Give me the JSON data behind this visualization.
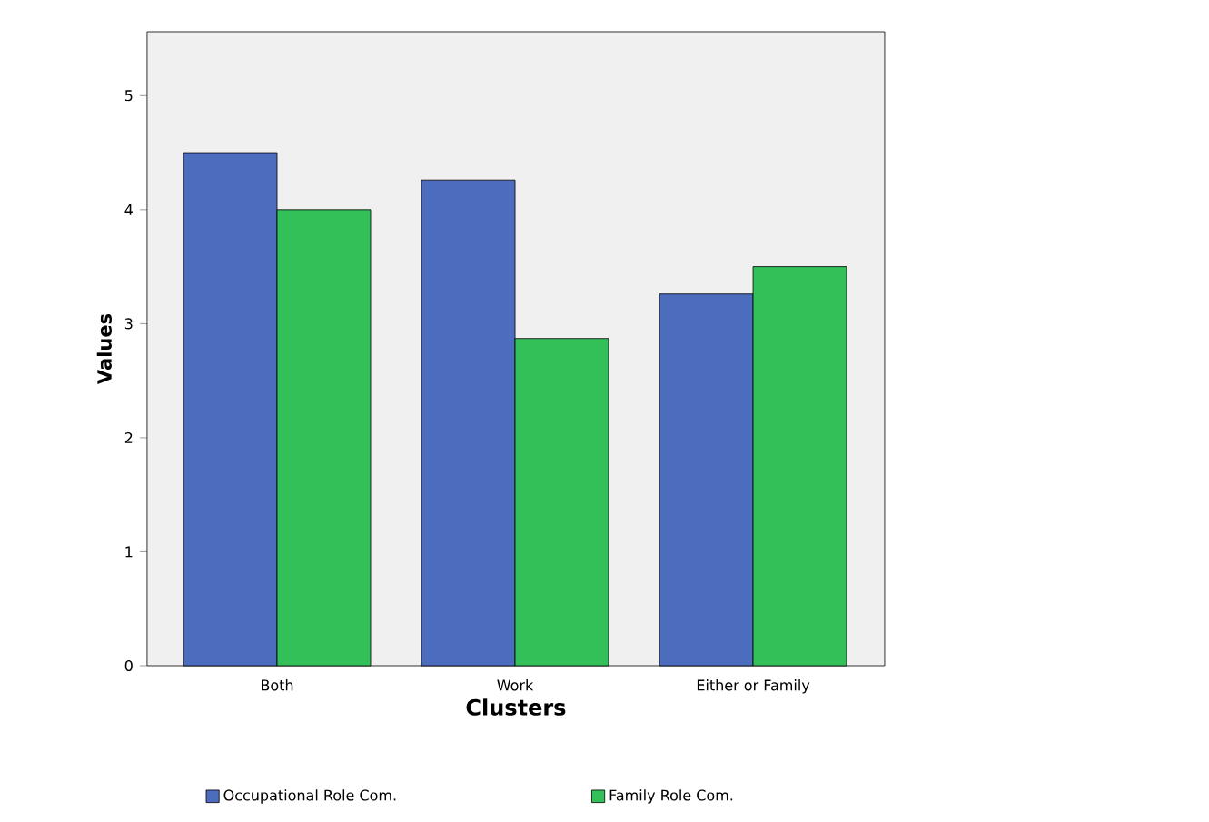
{
  "chart_data": {
    "type": "bar",
    "xlabel": "Clusters",
    "ylabel": "Values",
    "categories": [
      "Both",
      "Work",
      "Either or Family"
    ],
    "series": [
      {
        "name": "Occupational Role Com.",
        "color": "#4c6dbd",
        "values": [
          4.5,
          4.26,
          3.26
        ]
      },
      {
        "name": "Family Role Com.",
        "color": "#33c058",
        "values": [
          4.0,
          2.87,
          3.5
        ]
      }
    ],
    "ylim": [
      0,
      5.56
    ],
    "yticks": [
      0,
      1,
      2,
      3,
      4,
      5
    ],
    "grid": false,
    "legend": "bottom"
  }
}
